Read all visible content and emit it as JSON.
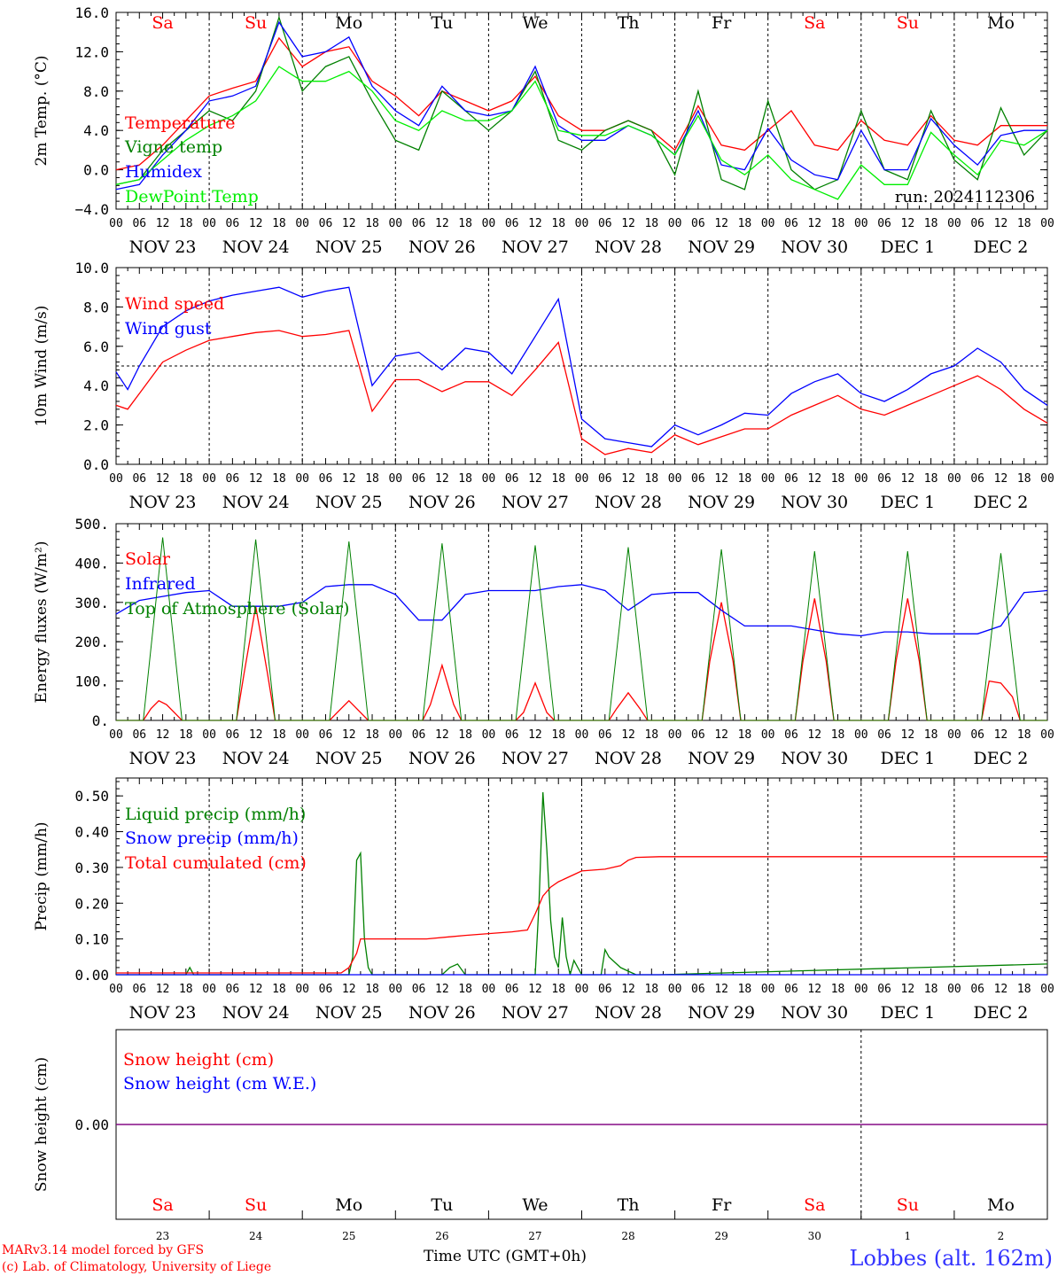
{
  "run_label": "run: 2024112306",
  "footer": {
    "credit_1": "MARv3.14 model forced by GFS",
    "credit_2": "(c) Lab. of Climatology, University of Liege",
    "time_label": "Time UTC (GMT+0h)",
    "station": "Lobbes (alt. 162m)"
  },
  "colors": {
    "red": "#ff0000",
    "green": "#008000",
    "blue": "#0000ff",
    "lightgreen": "#00ee00",
    "purple": "#800080",
    "station": "#3333ff"
  },
  "days": {
    "weekday": [
      "Sa",
      "Su",
      "Mo",
      "Tu",
      "We",
      "Th",
      "Fr",
      "Sa",
      "Su",
      "Mo"
    ],
    "weekday_red": [
      true,
      true,
      false,
      false,
      false,
      false,
      false,
      true,
      true,
      false
    ],
    "date_labels": [
      "NOV 23",
      "NOV 24",
      "NOV 25",
      "NOV 26",
      "NOV 27",
      "NOV 28",
      "NOV 29",
      "NOV 30",
      "DEC  1",
      "DEC  2"
    ],
    "day_numbers": [
      "23",
      "24",
      "25",
      "26",
      "27",
      "28",
      "29",
      "30",
      "1",
      "2"
    ],
    "hour_ticks": [
      "00",
      "06",
      "12",
      "18"
    ],
    "hour_end": "00"
  },
  "chart_data": [
    {
      "type": "line",
      "id": "temp",
      "ylabel": "2m Temp. (°C)",
      "ylim": [
        -4,
        16
      ],
      "yticks": [
        "16.0",
        "12.0",
        "8.0",
        "4.0",
        "0.0",
        "−4.0"
      ],
      "ytick_values": [
        16,
        12,
        8,
        4,
        0,
        -4
      ],
      "x_unit": "hours since 2024-11-23 00 UTC",
      "xlim": [
        0,
        240
      ],
      "series": [
        {
          "name": "Temperature",
          "color": "red",
          "x": [
            0,
            6,
            12,
            18,
            24,
            30,
            36,
            42,
            48,
            54,
            60,
            66,
            72,
            78,
            84,
            90,
            96,
            102,
            108,
            114,
            120,
            126,
            132,
            138,
            144,
            150,
            156,
            162,
            168,
            174,
            180,
            186,
            192,
            198,
            204,
            210,
            216,
            222,
            228,
            234,
            240
          ],
          "y": [
            0,
            0.5,
            2.5,
            5,
            7.5,
            8.3,
            9,
            13.4,
            10.5,
            12,
            12.5,
            9,
            7.5,
            5.5,
            8,
            7,
            6,
            7,
            9.5,
            5.5,
            4,
            4,
            5,
            4,
            2,
            6.5,
            2.5,
            2,
            4,
            6,
            2.5,
            2,
            5,
            3,
            2.5,
            5.5,
            3,
            2.5,
            4.5,
            4.5,
            4.5
          ]
        },
        {
          "name": "Vigne temp",
          "color": "green",
          "x": [
            0,
            6,
            12,
            18,
            24,
            30,
            36,
            42,
            48,
            54,
            60,
            66,
            72,
            78,
            84,
            90,
            96,
            102,
            108,
            114,
            120,
            126,
            132,
            138,
            144,
            150,
            156,
            162,
            168,
            174,
            180,
            186,
            192,
            198,
            204,
            210,
            216,
            222,
            228,
            234,
            240
          ],
          "y": [
            -1.5,
            -1,
            2,
            4,
            6,
            5,
            8,
            15.5,
            8,
            10.5,
            11.5,
            7,
            3,
            2,
            8,
            6,
            4,
            6,
            10,
            3,
            2,
            4,
            5,
            4,
            -0.5,
            8,
            -1,
            -2,
            7,
            0,
            -2,
            -1,
            6,
            0,
            -1,
            6,
            1,
            -1,
            6.3,
            1.5,
            4
          ]
        },
        {
          "name": "Humidex",
          "color": "blue",
          "x": [
            0,
            6,
            12,
            18,
            24,
            30,
            36,
            42,
            48,
            54,
            60,
            66,
            72,
            78,
            84,
            90,
            96,
            102,
            108,
            114,
            120,
            126,
            132,
            138,
            144,
            150,
            156,
            162,
            168,
            174,
            180,
            186,
            192,
            198,
            204,
            210,
            216,
            222,
            228,
            234,
            240
          ],
          "y": [
            -2,
            -1.5,
            1.5,
            4,
            7,
            7.5,
            8.5,
            15,
            11.5,
            12,
            13.5,
            8.5,
            6,
            4.5,
            8.5,
            6,
            5.5,
            6,
            10.5,
            4.5,
            3,
            3,
            4.5,
            3.5,
            1.5,
            6,
            0.5,
            0,
            4.2,
            1,
            -0.5,
            -1,
            4,
            0,
            0,
            5.2,
            2.5,
            0.5,
            3.5,
            4,
            4
          ]
        },
        {
          "name": "DewPoint Temp",
          "color": "lightgreen",
          "x": [
            0,
            6,
            12,
            18,
            24,
            30,
            36,
            42,
            48,
            54,
            60,
            66,
            72,
            78,
            84,
            90,
            96,
            102,
            108,
            114,
            120,
            126,
            132,
            138,
            144,
            150,
            156,
            162,
            168,
            174,
            180,
            186,
            192,
            198,
            204,
            210,
            216,
            222,
            228,
            234,
            240
          ],
          "y": [
            -1.5,
            -1,
            1,
            3,
            4.5,
            5.5,
            7,
            10.5,
            9,
            9,
            10,
            8,
            5,
            4,
            6,
            5,
            5,
            6,
            9,
            4,
            3.5,
            3.5,
            4.5,
            3.5,
            1.5,
            5.5,
            1,
            -0.5,
            1.5,
            -1,
            -2,
            -3,
            0.5,
            -1.5,
            -1.5,
            3.8,
            1.5,
            -0.5,
            3,
            2.5,
            4
          ]
        }
      ]
    },
    {
      "type": "line",
      "id": "wind",
      "ylabel": "10m Wind (m/s)",
      "ylim": [
        0,
        10
      ],
      "yticks": [
        "10.0",
        "8.0",
        "6.0",
        "4.0",
        "2.0",
        "0.0"
      ],
      "ytick_values": [
        10,
        8,
        6,
        4,
        2,
        0
      ],
      "reference_line": 5,
      "xlim": [
        0,
        240
      ],
      "series": [
        {
          "name": "Wind speed",
          "color": "red",
          "x": [
            0,
            3,
            6,
            12,
            18,
            24,
            30,
            36,
            42,
            48,
            54,
            60,
            66,
            72,
            78,
            84,
            90,
            96,
            102,
            108,
            114,
            120,
            126,
            132,
            138,
            144,
            150,
            156,
            162,
            168,
            174,
            180,
            186,
            192,
            198,
            204,
            210,
            216,
            222,
            228,
            234,
            240
          ],
          "y": [
            3,
            2.8,
            3.6,
            5.2,
            5.8,
            6.3,
            6.5,
            6.7,
            6.8,
            6.5,
            6.6,
            6.8,
            2.7,
            4.3,
            4.3,
            3.7,
            4.2,
            4.2,
            3.5,
            4.8,
            6.2,
            1.3,
            0.5,
            0.8,
            0.6,
            1.5,
            1.0,
            1.4,
            1.8,
            1.8,
            2.5,
            3.0,
            3.5,
            2.8,
            2.5,
            3.0,
            3.5,
            4.0,
            4.5,
            3.8,
            2.8,
            2.1
          ]
        },
        {
          "name": "Wind gust",
          "color": "blue",
          "x": [
            0,
            3,
            6,
            12,
            18,
            24,
            30,
            36,
            42,
            48,
            54,
            60,
            66,
            72,
            78,
            84,
            90,
            96,
            102,
            108,
            114,
            120,
            126,
            132,
            138,
            144,
            150,
            156,
            162,
            168,
            174,
            180,
            186,
            192,
            198,
            204,
            210,
            216,
            222,
            228,
            234,
            240
          ],
          "y": [
            4.7,
            3.8,
            5.0,
            7.0,
            7.8,
            8.3,
            8.6,
            8.8,
            9.0,
            8.5,
            8.8,
            9.0,
            4.0,
            5.5,
            5.7,
            4.8,
            5.9,
            5.7,
            4.6,
            6.5,
            8.4,
            2.3,
            1.3,
            1.1,
            0.9,
            2.0,
            1.5,
            2.0,
            2.6,
            2.5,
            3.6,
            4.2,
            4.6,
            3.6,
            3.2,
            3.8,
            4.6,
            5.0,
            5.9,
            5.2,
            3.8,
            3.0
          ]
        }
      ]
    },
    {
      "type": "line",
      "id": "energy",
      "ylabel": "Energy fluxes (W/m²)",
      "ylim": [
        0,
        500
      ],
      "yticks": [
        "500.",
        "400.",
        "300.",
        "200.",
        "100.",
        "0."
      ],
      "ytick_values": [
        500,
        400,
        300,
        200,
        100,
        0
      ],
      "xlim": [
        0,
        240
      ],
      "series": [
        {
          "name": "Solar",
          "color": "red",
          "x": [
            0,
            7,
            9,
            11,
            13,
            15,
            17,
            31,
            33,
            36,
            39,
            41,
            55,
            57,
            60,
            63,
            65,
            79,
            81,
            84,
            87,
            89,
            103,
            105,
            108,
            111,
            113,
            127,
            129,
            132,
            135,
            137,
            151,
            153,
            156,
            159,
            161,
            175,
            177,
            180,
            183,
            185,
            199,
            201,
            204,
            207,
            209,
            223,
            225,
            228,
            231,
            233,
            240
          ],
          "y": [
            0,
            0,
            30,
            50,
            40,
            20,
            0,
            0,
            120,
            290,
            120,
            0,
            0,
            20,
            50,
            20,
            0,
            0,
            40,
            140,
            40,
            0,
            0,
            20,
            95,
            20,
            0,
            0,
            30,
            70,
            30,
            0,
            0,
            150,
            300,
            150,
            0,
            0,
            150,
            310,
            150,
            0,
            0,
            150,
            310,
            150,
            0,
            0,
            100,
            95,
            60,
            0,
            0
          ]
        },
        {
          "name": "Infrared",
          "color": "blue",
          "x": [
            0,
            6,
            12,
            18,
            24,
            30,
            36,
            42,
            48,
            54,
            60,
            66,
            72,
            78,
            84,
            90,
            96,
            102,
            108,
            114,
            120,
            126,
            132,
            138,
            144,
            150,
            156,
            162,
            168,
            174,
            180,
            186,
            192,
            198,
            204,
            210,
            216,
            222,
            228,
            234,
            240
          ],
          "y": [
            270,
            305,
            315,
            325,
            330,
            290,
            290,
            290,
            300,
            340,
            345,
            345,
            320,
            255,
            255,
            320,
            330,
            330,
            330,
            340,
            345,
            330,
            280,
            320,
            325,
            325,
            280,
            240,
            240,
            240,
            230,
            220,
            215,
            225,
            225,
            220,
            220,
            220,
            240,
            325,
            330
          ]
        },
        {
          "name": "Top of Atmosphere (Solar)",
          "color": "green",
          "x": [
            0,
            7,
            12,
            17,
            31,
            36,
            41,
            55,
            60,
            65,
            79,
            84,
            89,
            103,
            108,
            113,
            127,
            132,
            137,
            151,
            156,
            161,
            175,
            180,
            185,
            199,
            204,
            209,
            223,
            228,
            233,
            240
          ],
          "y": [
            0,
            0,
            465,
            0,
            0,
            460,
            0,
            0,
            455,
            0,
            0,
            450,
            0,
            0,
            445,
            0,
            0,
            440,
            0,
            0,
            435,
            0,
            0,
            430,
            0,
            0,
            430,
            0,
            0,
            425,
            0,
            0
          ]
        }
      ]
    },
    {
      "type": "line",
      "id": "precip",
      "ylabel": "Precip (mm/h)",
      "ylim": [
        0,
        0.55
      ],
      "yticks": [
        "0.50",
        "0.40",
        "0.30",
        "0.20",
        "0.10",
        "0.00"
      ],
      "ytick_values": [
        0.5,
        0.4,
        0.3,
        0.2,
        0.1,
        0.0
      ],
      "xlim": [
        0,
        240
      ],
      "series": [
        {
          "name": "Liquid precip (mm/h)",
          "color": "green",
          "x": [
            0,
            18,
            19,
            20,
            60,
            61,
            62,
            63,
            64,
            65,
            66,
            84,
            86,
            88,
            90,
            108,
            109,
            110,
            111,
            112,
            113,
            114,
            115,
            116,
            117,
            118,
            120,
            125,
            126,
            127,
            130,
            132,
            134,
            140,
            240
          ],
          "y": [
            0,
            0,
            0.02,
            0,
            0,
            0.05,
            0.32,
            0.34,
            0.1,
            0.02,
            0,
            0,
            0.02,
            0.03,
            0,
            0,
            0.2,
            0.51,
            0.35,
            0.15,
            0.05,
            0.02,
            0.16,
            0.05,
            0,
            0.04,
            0,
            0,
            0.07,
            0.05,
            0.02,
            0.01,
            0,
            0,
            0.03
          ]
        },
        {
          "name": "Snow precip (mm/h)",
          "color": "blue",
          "x": [
            0,
            240
          ],
          "y": [
            0,
            0
          ]
        },
        {
          "name": "Total cumulated (cm)",
          "color": "red",
          "x": [
            0,
            58,
            60,
            62,
            63,
            64,
            80,
            90,
            96,
            102,
            106,
            108,
            110,
            112,
            114,
            118,
            120,
            126,
            130,
            132,
            134,
            140,
            240
          ],
          "y": [
            0.005,
            0.005,
            0.02,
            0.06,
            0.1,
            0.1,
            0.1,
            0.11,
            0.115,
            0.12,
            0.125,
            0.17,
            0.22,
            0.245,
            0.26,
            0.28,
            0.29,
            0.295,
            0.305,
            0.32,
            0.328,
            0.33,
            0.33
          ]
        }
      ]
    },
    {
      "type": "line",
      "id": "snow",
      "ylabel": "Snow height (cm)",
      "ylim": [
        -1,
        1
      ],
      "yticks": [
        "0.00"
      ],
      "ytick_values": [
        0
      ],
      "xlim": [
        0,
        240
      ],
      "series": [
        {
          "name": "Snow height (cm)",
          "color": "red",
          "x": [
            0,
            240
          ],
          "y": [
            0,
            0
          ]
        },
        {
          "name": "Snow height (cm W.E.)",
          "color": "blue",
          "x": [
            0,
            240
          ],
          "y": [
            0,
            0
          ]
        }
      ]
    }
  ]
}
